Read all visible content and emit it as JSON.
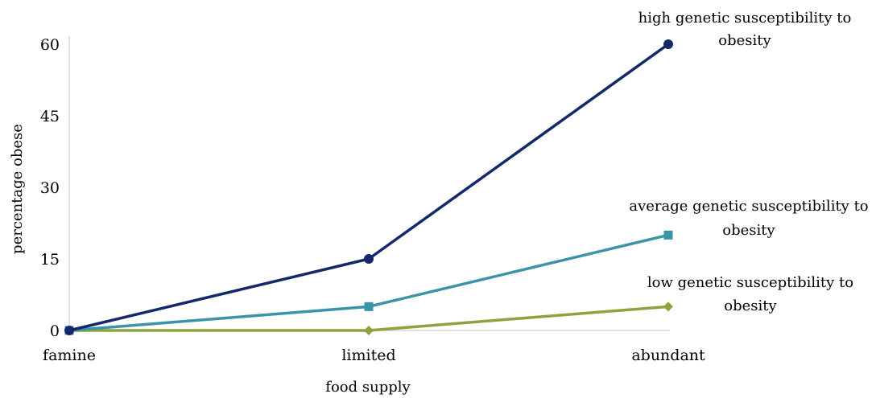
{
  "chart_data": {
    "type": "line",
    "categories": [
      "famine",
      "limited",
      "abundant"
    ],
    "xlabel": "food supply",
    "ylabel": "percentage obese",
    "ylim": [
      0,
      60
    ],
    "yticks": [
      0,
      15,
      30,
      45,
      60
    ],
    "grid": false,
    "series": [
      {
        "name": "high genetic susceptibility to obesity",
        "label_lines": [
          "high genetic susceptibility to",
          "obesity"
        ],
        "values": [
          0,
          15,
          60
        ],
        "color": "#14296b",
        "marker": "circle"
      },
      {
        "name": "average genetic susceptibility to obesity",
        "label_lines": [
          "average genetic susceptibility to",
          "obesity"
        ],
        "values": [
          0,
          5,
          20
        ],
        "color": "#3a93a8",
        "marker": "square"
      },
      {
        "name": "low genetic susceptibility to obesity",
        "label_lines": [
          "low genetic susceptibility to",
          "obesity"
        ],
        "values": [
          0,
          0,
          5
        ],
        "color": "#8ea33e",
        "marker": "diamond"
      }
    ]
  }
}
